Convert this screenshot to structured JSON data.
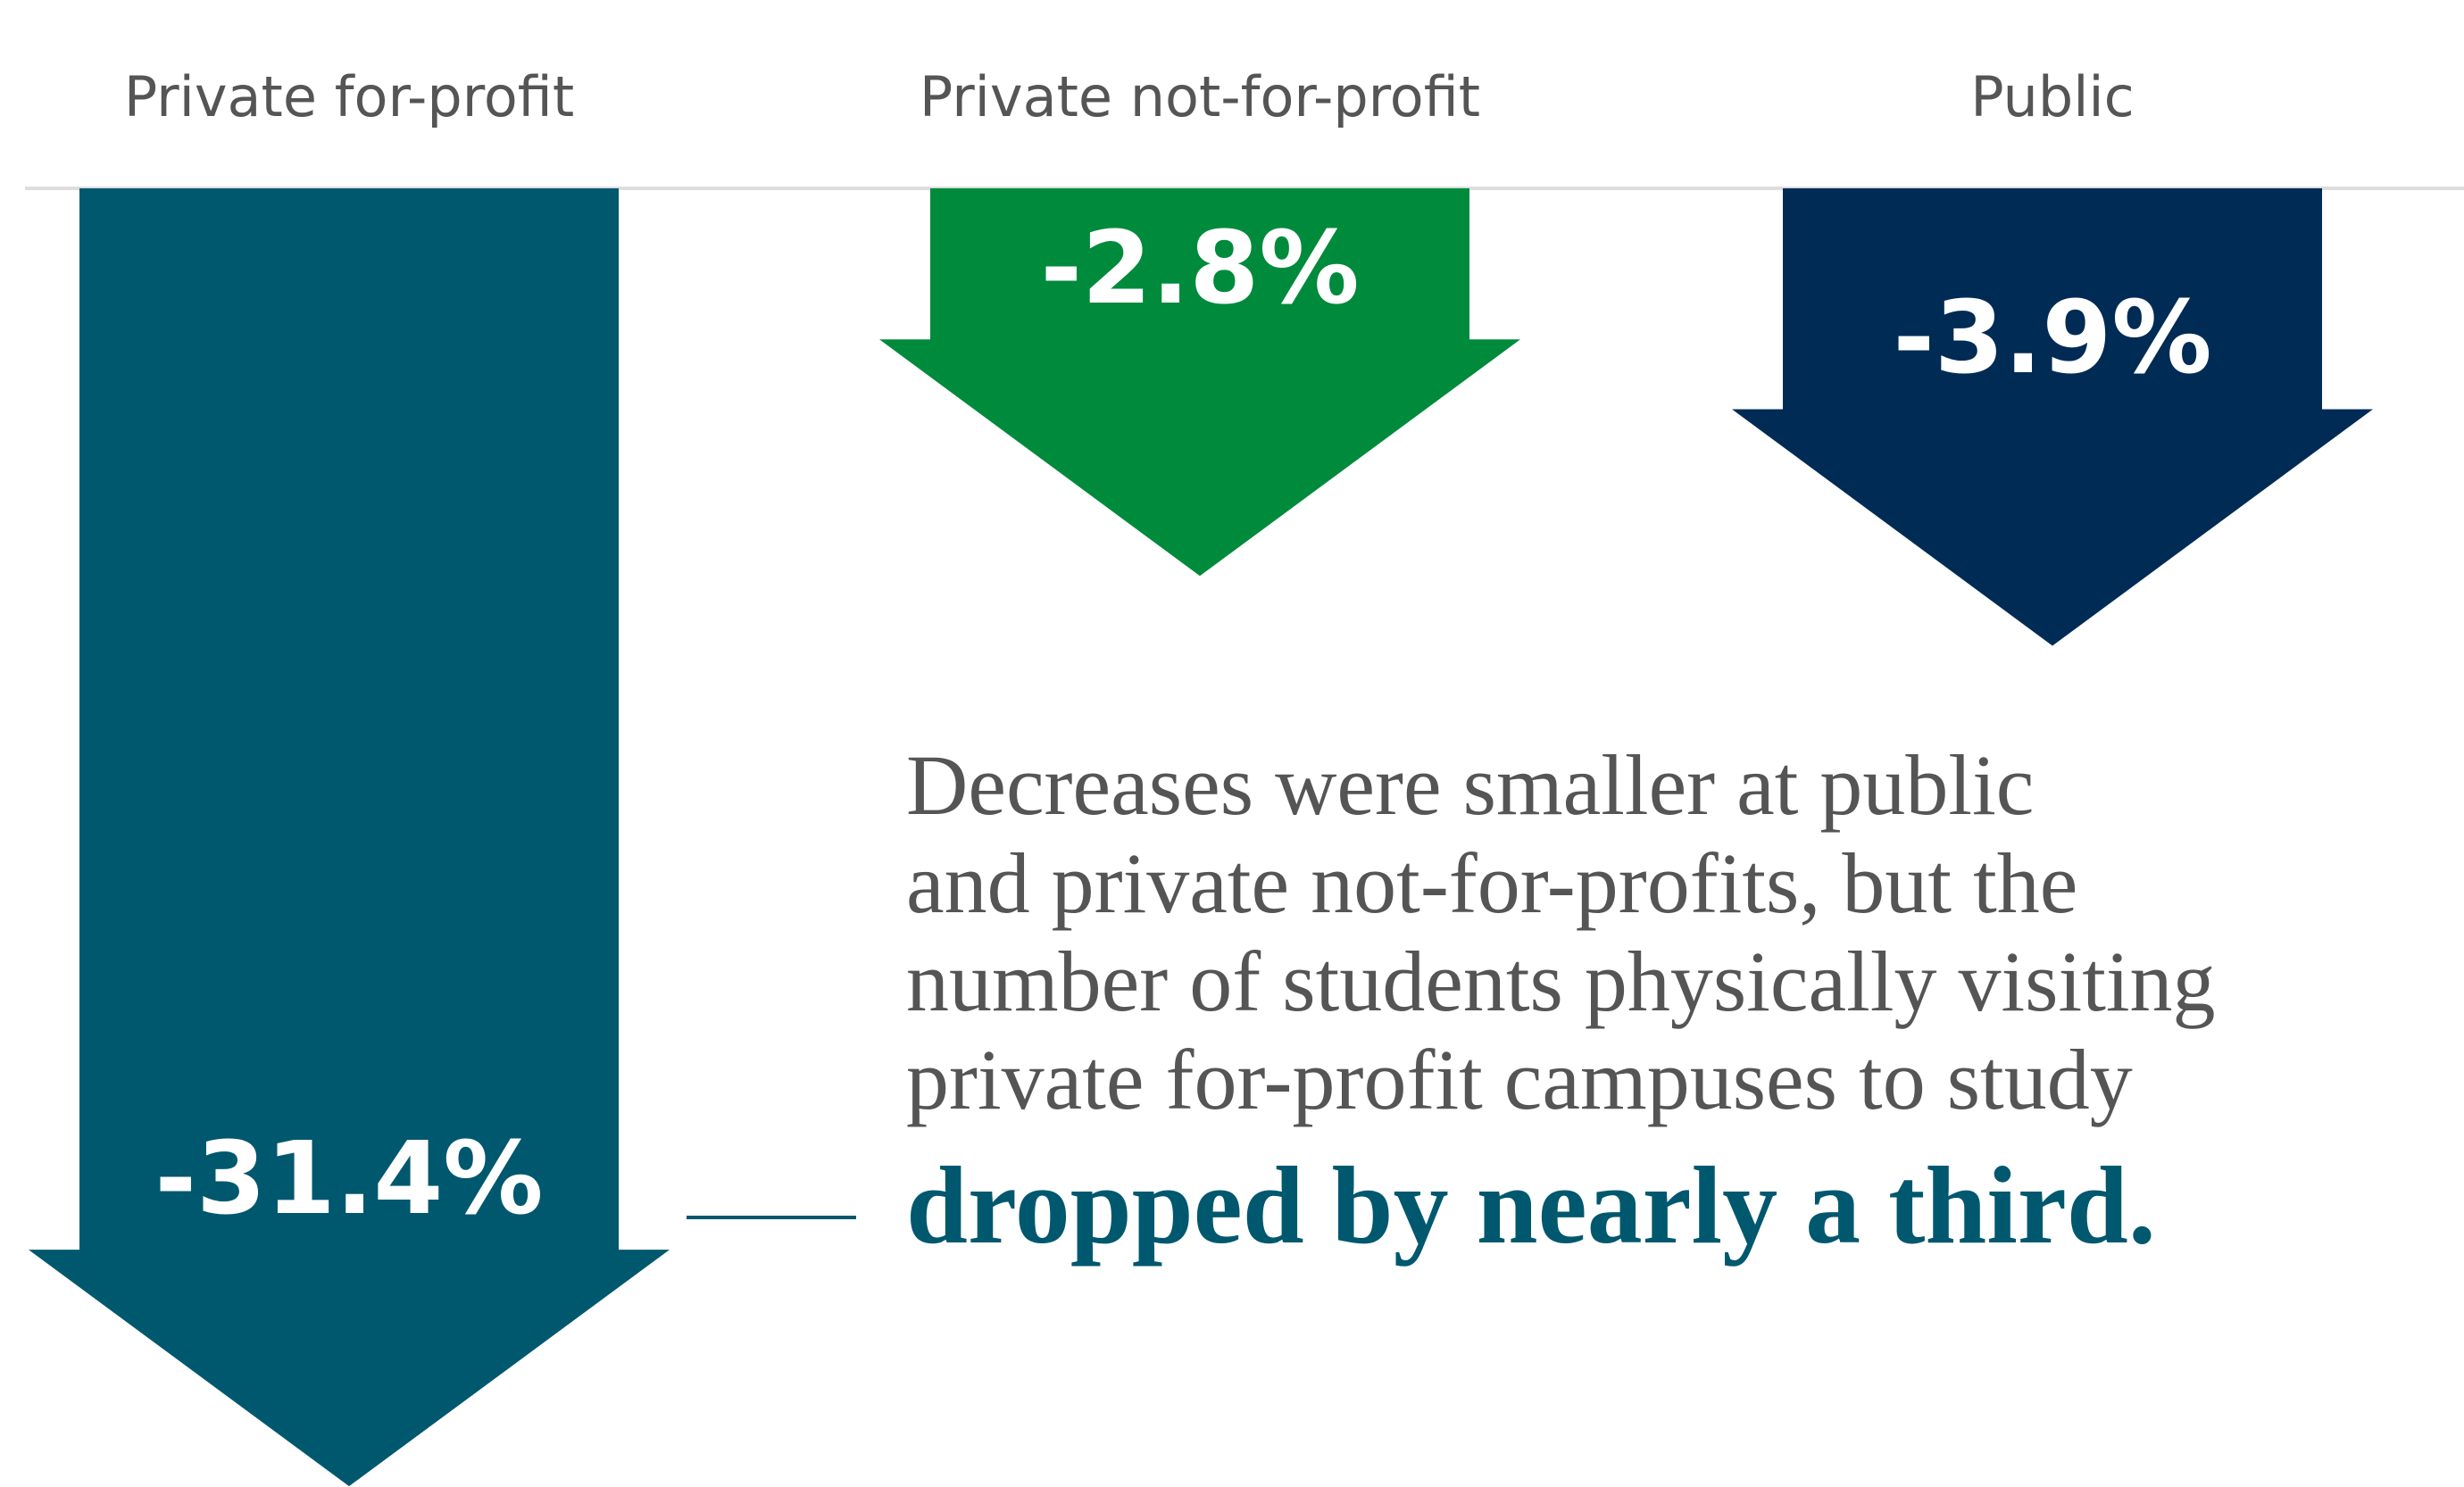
{
  "chart_data": {
    "type": "arrow",
    "categories": [
      "Private for-profit",
      "Private not-for-profit",
      "Public"
    ],
    "values": [
      -31.4,
      -2.8,
      -3.9
    ],
    "value_labels": [
      "-31.4%",
      "-2.8%",
      "-3.9%"
    ],
    "colors": [
      "#00586e",
      "#008a3c",
      "#002b55"
    ],
    "annotation": {
      "lines": [
        "Decreases were smaller at public",
        "and private not-for-profits, but the",
        "number of students physically visiting",
        "private for-profit campuses to study"
      ],
      "emphasis": "dropped by nearly a third."
    }
  }
}
